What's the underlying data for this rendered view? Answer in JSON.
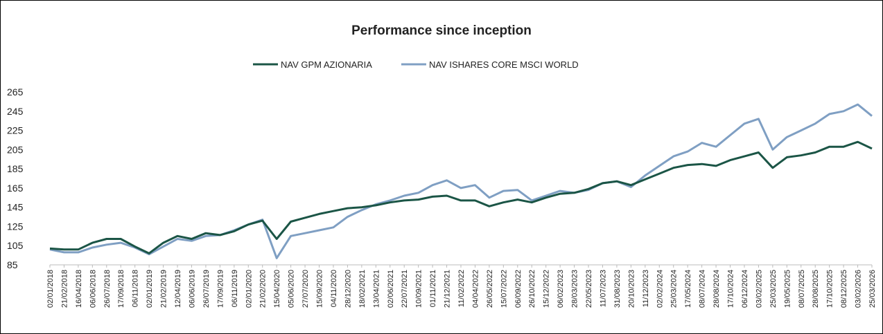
{
  "chart_data": {
    "type": "line",
    "title": "Performance since inception",
    "categories": [
      "02/01/2018",
      "21/02/2018",
      "16/04/2018",
      "06/06/2018",
      "26/07/2018",
      "17/09/2018",
      "06/11/2018",
      "02/01/2019",
      "21/02/2019",
      "12/04/2019",
      "06/06/2019",
      "26/07/2019",
      "17/09/2019",
      "06/11/2019",
      "02/01/2020",
      "21/02/2020",
      "15/04/2020",
      "05/06/2020",
      "27/07/2020",
      "15/09/2020",
      "04/11/2020",
      "28/12/2020",
      "18/02/2021",
      "13/04/2021",
      "02/06/2021",
      "22/07/2021",
      "10/09/2021",
      "01/11/2021",
      "21/12/2021",
      "11/02/2022",
      "04/04/2022",
      "26/05/2022",
      "15/07/2022",
      "06/09/2022",
      "26/10/2022",
      "15/12/2022",
      "06/02/2023",
      "28/03/2023",
      "22/05/2023",
      "11/07/2023",
      "31/08/2023",
      "20/10/2023",
      "11/12/2023",
      "02/02/2024",
      "25/03/2024",
      "17/05/2024",
      "08/07/2024",
      "28/08/2024",
      "17/10/2024",
      "06/12/2024",
      "03/02/2025",
      "25/03/2025",
      "19/05/2025",
      "08/07/2025",
      "28/08/2025",
      "17/10/2025",
      "08/12/2025",
      "03/02/2026",
      "25/03/2026"
    ],
    "series": [
      {
        "name": "NAV GPM AZIONARIA",
        "color": "#1b5546",
        "values": [
          102,
          101,
          101,
          108,
          112,
          112,
          104,
          97,
          108,
          115,
          112,
          118,
          116,
          120,
          127,
          131,
          112,
          130,
          134,
          138,
          141,
          144,
          145,
          147,
          150,
          152,
          153,
          156,
          157,
          152,
          152,
          146,
          150,
          153,
          150,
          155,
          159,
          160,
          164,
          170,
          172,
          168,
          174,
          180,
          186,
          189,
          190,
          188,
          194,
          198,
          202,
          186,
          197,
          199,
          202,
          208,
          208,
          213,
          206
        ]
      },
      {
        "name": "NAV ISHARES CORE MSCI WORLD",
        "color": "#7f9fc3",
        "values": [
          101,
          98,
          98,
          103,
          106,
          108,
          103,
          96,
          104,
          112,
          110,
          115,
          116,
          121,
          127,
          132,
          92,
          115,
          118,
          121,
          124,
          135,
          142,
          148,
          152,
          157,
          160,
          168,
          173,
          165,
          168,
          155,
          162,
          163,
          152,
          157,
          162,
          160,
          163,
          170,
          172,
          166,
          178,
          188,
          198,
          203,
          212,
          208,
          220,
          232,
          237,
          205,
          218,
          225,
          232,
          242,
          245,
          252,
          240
        ]
      }
    ],
    "ylim": [
      85,
      265
    ],
    "yticks": [
      85,
      105,
      125,
      145,
      165,
      185,
      205,
      225,
      245,
      265
    ],
    "legend": "top"
  }
}
